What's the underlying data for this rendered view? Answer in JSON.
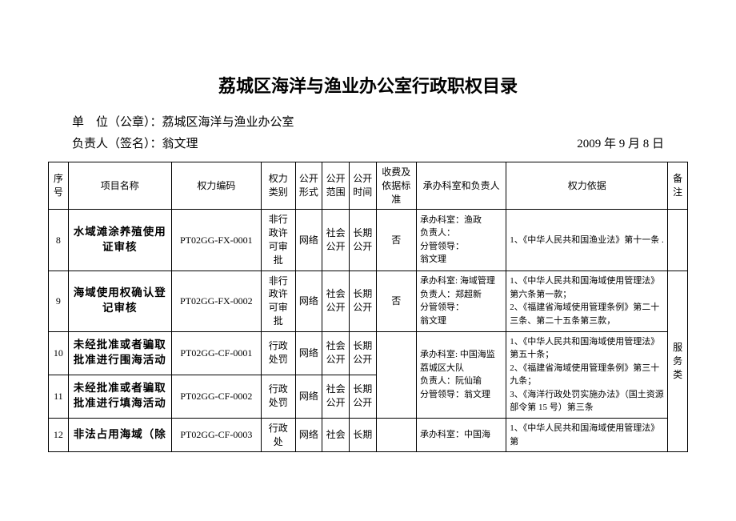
{
  "title": "荔城区海洋与渔业办公室行政职权目录",
  "meta": {
    "unit_label": "单　位（公章）：",
    "unit_value": "荔城区海洋与渔业办公室",
    "owner_label": "负责人（签名）：",
    "owner_value": "翁文理",
    "date": "2009 年 9 月 8 日"
  },
  "headers": {
    "idx": "序号",
    "name": "项目名称",
    "code": "权力编码",
    "cat": "权力类别",
    "form": "公开形式",
    "scope": "公开范围",
    "time": "公开时间",
    "fee": "收费及依据标准",
    "dept": "承办科室和负责人",
    "basis": "权力依据",
    "note": "备注"
  },
  "rows": [
    {
      "idx": "8",
      "name": "水域滩涂养殖使用证审核",
      "code": "PT02GG-FX-0001",
      "cat": "非行政许可审批",
      "form": "网络",
      "scope": "社会公开",
      "time": "长期公开",
      "fee": "否",
      "dept": "承办科室：渔政\n负责人：\n分管领导：\n翁文理",
      "basis": "1、《中华人民共和国渔业法》第十一条 ."
    },
    {
      "idx": "9",
      "name": "海域使用权确认登记审核",
      "code": "PT02GG-FX-0002",
      "cat": "非行政许可审批",
      "form": "网络",
      "scope": "社会公开",
      "time": "长期公开",
      "fee": "否",
      "dept": "承办科室: 海域管理\n负责人：郑超新\n分管领导：\n翁文理",
      "basis": "1、《中华人民共和国海域使用管理法》第六条第一款；\n2、《福建省海域使用管理条例》第二十三条、第二十五条第三款，"
    },
    {
      "idx": "10",
      "name": "未经批准或者骗取批准进行围海活动",
      "code": "PT02GG-CF-0001",
      "cat": "行政处罚",
      "form": "网络",
      "scope": "社会公开",
      "time": "长期公开"
    },
    {
      "idx": "11",
      "name": "未经批准或者骗取批准进行填海活动",
      "code": "PT02GG-CF-0002",
      "cat": "行政处罚",
      "form": "网络",
      "scope": "社会公开",
      "time": "长期公开"
    },
    {
      "idx": "12",
      "name": "非法占用海域（除",
      "code": "PT02GG-CF-0003",
      "cat": "行政处",
      "form": "网络",
      "scope": "社会",
      "time": "长期"
    }
  ],
  "merged": {
    "dept_10_11": "承办科室: 中国海监荔城区大队\n负责人：阮仙瑜\n分管领导：翁文理",
    "basis_10_11": "1、《中华人民共和国海域使用管理法》第五十条；\n2、《福建省海域使用管理条例》第三十九条；\n3、《海洋行政处罚实施办法》（国土资源部令第 15 号）第三条",
    "dept_12": "承办科室：中国海",
    "basis_12": "1、《中华人民共和国海域使用管理法》第",
    "note_side": "服务类"
  },
  "style": {
    "background": "#ffffff",
    "text_color": "#000000",
    "border_color": "#000000",
    "title_fontsize": 22,
    "body_fontsize": 13,
    "cell_fontsize": 12,
    "font_family": "SimSun"
  }
}
